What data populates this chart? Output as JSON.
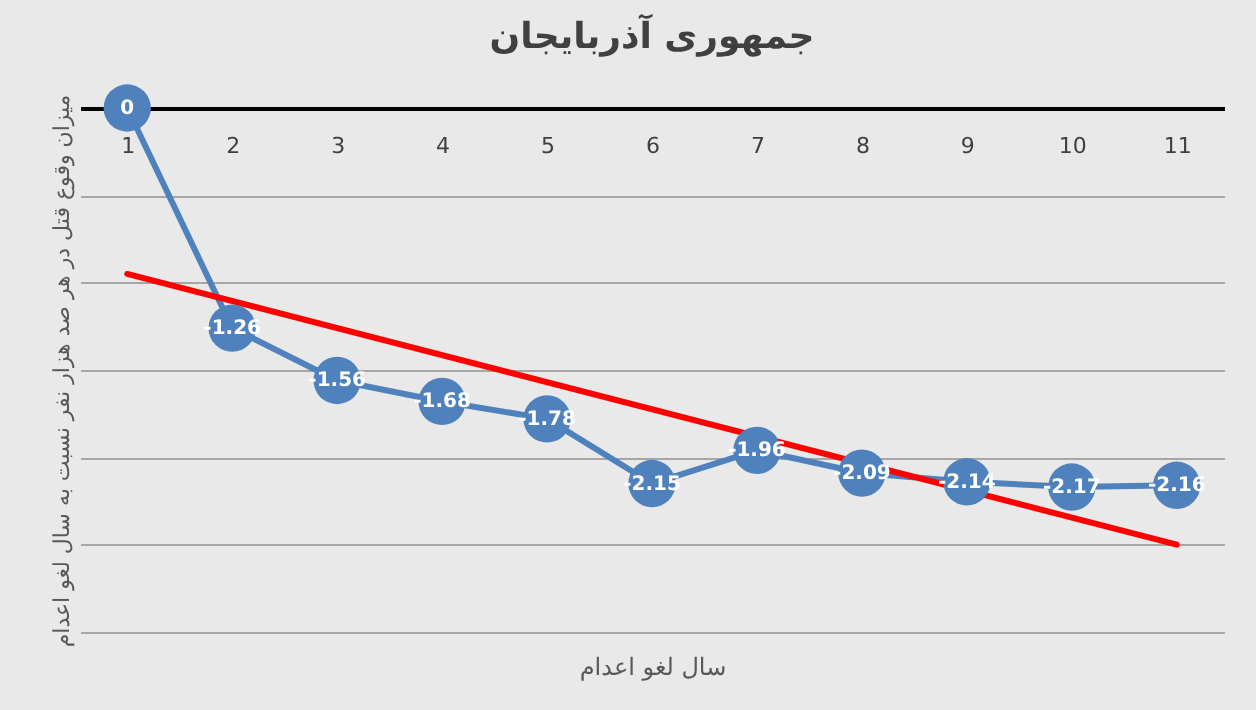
{
  "chart_data": {
    "type": "line",
    "title": "جمهوری آذربایجان",
    "xlabel": "سال لغو اعدام",
    "ylabel": "میزان وقوع قتل در هر صد هزار نفر نسبت به سال لغو اعدام",
    "categories": [
      "1",
      "2",
      "3",
      "4",
      "5",
      "6",
      "7",
      "8",
      "9",
      "10",
      "11"
    ],
    "series": [
      {
        "color": "#4f81bd",
        "marker": "circle",
        "data_labels": true,
        "values": [
          0,
          -1.26,
          -1.56,
          -1.68,
          -1.78,
          -2.15,
          -1.96,
          -2.09,
          -2.14,
          -2.17,
          -2.16
        ]
      },
      {
        "color": "#ff0000",
        "marker": "none",
        "values": [
          -0.95,
          null,
          null,
          null,
          null,
          null,
          null,
          null,
          null,
          null,
          -2.5
        ]
      }
    ],
    "ylim": [
      -3,
      0
    ],
    "yticks": [
      {
        "value": -3,
        "label": null
      },
      {
        "value": -2.5,
        "label": null
      },
      {
        "value": -2,
        "label": null
      },
      {
        "value": -1.5,
        "label": null
      },
      {
        "value": -1,
        "label": null
      },
      {
        "value": -0.5,
        "label": null
      },
      {
        "value": 0,
        "label": null
      }
    ],
    "tick_labels": "x",
    "grid": "y"
  }
}
